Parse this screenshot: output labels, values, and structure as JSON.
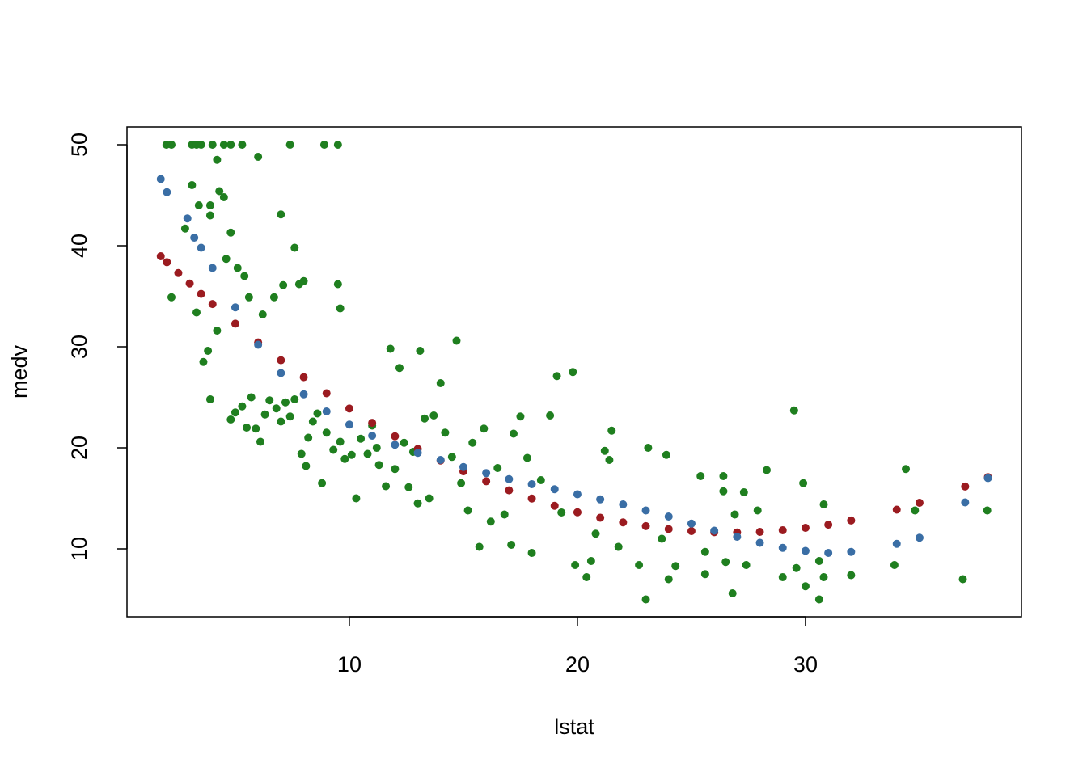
{
  "chart_data": {
    "type": "scatter",
    "x_label": "lstat",
    "y_label": "medv",
    "xlim": [
      0.25,
      39.47
    ],
    "ylim": [
      3.28,
      51.76
    ],
    "xticks": [
      10,
      20,
      30
    ],
    "yticks": [
      10,
      20,
      30,
      40,
      50
    ],
    "series": [
      {
        "color": "#1f7f1f",
        "x": [
          1.98,
          2.2,
          3.1,
          3.3,
          3.5,
          4.0,
          4.5,
          4.8,
          5.3,
          7.4,
          8.9,
          9.5,
          3.1,
          3.4,
          3.9,
          3.9,
          2.8,
          4.2,
          4.5,
          4.3,
          7.0,
          7.6,
          6.0,
          2.2,
          3.3,
          3.6,
          3.9,
          3.8,
          4.2,
          4.6,
          4.8,
          5.1,
          5.4,
          5.6,
          6.2,
          6.7,
          7.1,
          7.8,
          8.0,
          9.5,
          9.6,
          4.8,
          5.0,
          5.3,
          5.5,
          5.7,
          5.9,
          6.1,
          6.3,
          6.5,
          6.8,
          7.0,
          7.2,
          7.4,
          7.6,
          7.9,
          8.1,
          8.2,
          8.4,
          8.6,
          8.8,
          9.0,
          9.3,
          9.6,
          9.8,
          10.1,
          10.3,
          10.5,
          10.8,
          11.0,
          11.2,
          11.3,
          11.6,
          11.8,
          12.0,
          12.2,
          12.4,
          12.6,
          12.8,
          13.0,
          13.1,
          13.3,
          13.5,
          13.7,
          14.0,
          14.2,
          14.5,
          14.7,
          14.9,
          15.2,
          15.4,
          15.7,
          15.9,
          16.2,
          16.5,
          16.8,
          17.1,
          17.2,
          17.5,
          17.8,
          18.0,
          18.4,
          18.8,
          19.1,
          19.3,
          19.8,
          19.9,
          20.4,
          20.6,
          20.8,
          21.2,
          21.4,
          21.5,
          21.8,
          22.7,
          23.0,
          23.1,
          23.7,
          23.9,
          24.0,
          24.3,
          25.4,
          25.6,
          25.6,
          26.4,
          26.4,
          26.5,
          26.8,
          26.9,
          27.3,
          27.4,
          27.9,
          28.3,
          29.0,
          29.5,
          29.6,
          29.9,
          30.0,
          30.6,
          30.6,
          30.8,
          30.8,
          32.0,
          33.9,
          34.4,
          34.8,
          36.9,
          37.97
        ],
        "values": [
          50,
          50,
          50,
          50,
          50,
          50,
          50,
          50,
          50,
          50,
          50,
          50,
          46,
          44,
          44,
          43,
          41.7,
          48.5,
          44.8,
          45.4,
          43.1,
          39.8,
          48.8,
          34.9,
          33.4,
          28.5,
          24.8,
          29.6,
          31.6,
          38.7,
          41.3,
          37.8,
          37.0,
          34.9,
          33.2,
          34.9,
          36.1,
          36.2,
          36.5,
          36.2,
          33.8,
          22.8,
          23.5,
          24.1,
          22.0,
          25.0,
          21.9,
          20.6,
          23.3,
          24.7,
          23.9,
          22.6,
          24.5,
          23.1,
          24.8,
          19.4,
          18.2,
          21.0,
          22.6,
          23.4,
          16.5,
          21.5,
          19.8,
          20.6,
          18.9,
          19.3,
          15.0,
          20.9,
          19.4,
          22.2,
          20.0,
          18.3,
          16.2,
          29.8,
          17.9,
          27.9,
          20.5,
          16.1,
          19.6,
          14.5,
          29.6,
          22.9,
          15.0,
          23.2,
          26.4,
          21.5,
          19.1,
          30.6,
          16.5,
          13.8,
          20.5,
          10.2,
          21.9,
          12.7,
          18.0,
          13.4,
          10.4,
          21.4,
          23.1,
          19.0,
          9.6,
          16.8,
          23.2,
          27.1,
          13.6,
          27.5,
          8.4,
          7.2,
          8.8,
          11.5,
          19.7,
          18.8,
          21.7,
          10.2,
          8.4,
          5.0,
          20.0,
          11.0,
          19.3,
          7.0,
          8.3,
          17.2,
          9.7,
          7.5,
          17.2,
          15.7,
          8.7,
          5.6,
          13.4,
          15.6,
          8.4,
          13.8,
          17.8,
          7.2,
          23.7,
          8.1,
          16.5,
          6.3,
          5.0,
          8.8,
          7.2,
          14.4,
          7.4,
          8.4,
          17.9,
          13.8,
          7.0,
          13.8
        ]
      },
      {
        "color": "#9b1b20",
        "x": [
          1.73,
          2,
          2.5,
          3,
          3.5,
          4,
          5,
          6,
          7,
          8,
          9,
          10,
          11,
          12,
          13,
          14,
          15,
          16,
          17,
          18,
          19,
          20,
          21,
          22,
          23,
          24,
          25,
          26,
          27,
          28,
          29,
          30,
          31,
          32,
          34,
          35,
          37,
          38
        ],
        "values": [
          38.96,
          38.37,
          37.3,
          36.26,
          35.23,
          34.23,
          32.29,
          30.43,
          28.67,
          26.99,
          25.4,
          23.89,
          22.47,
          21.14,
          19.89,
          18.74,
          17.67,
          16.69,
          15.79,
          14.98,
          14.26,
          13.62,
          13.08,
          12.62,
          12.25,
          11.96,
          11.76,
          11.65,
          11.62,
          11.68,
          11.84,
          12.08,
          12.39,
          12.81,
          13.88,
          14.56,
          16.17,
          17.1
        ]
      },
      {
        "color": "#3a6ea5",
        "x": [
          1.73,
          2,
          2.9,
          3.2,
          3.5,
          4,
          5,
          6,
          7,
          8,
          9,
          10,
          11,
          12,
          13,
          14,
          15,
          16,
          17,
          18,
          19,
          20,
          21,
          22,
          23,
          24,
          25,
          26,
          27,
          28,
          29,
          30,
          31,
          32,
          34,
          35,
          37,
          38
        ],
        "values": [
          46.6,
          45.3,
          42.7,
          40.8,
          39.8,
          37.8,
          33.9,
          30.2,
          27.4,
          25.3,
          23.6,
          22.3,
          21.2,
          20.3,
          19.5,
          18.8,
          18.1,
          17.5,
          16.9,
          16.4,
          15.9,
          15.4,
          14.9,
          14.4,
          13.8,
          13.2,
          12.5,
          11.8,
          11.2,
          10.6,
          10.1,
          9.8,
          9.6,
          9.7,
          10.5,
          11.1,
          14.6,
          17.0
        ]
      }
    ]
  }
}
